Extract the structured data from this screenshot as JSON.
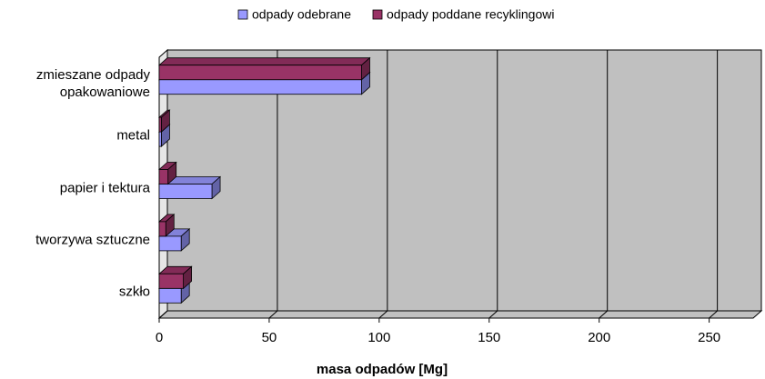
{
  "chart_data": {
    "type": "bar3d_horizontal",
    "categories": [
      "szkło",
      "tworzywa sztuczne",
      "papier i tektura",
      "metal",
      "zmieszane odpady opakowaniowe"
    ],
    "series": [
      {
        "name": "odpady odebrane",
        "color": "#9999ff",
        "values": [
          10,
          10,
          24,
          1,
          92
        ]
      },
      {
        "name": "odpady poddane recyklingowi",
        "color": "#993366",
        "values": [
          11,
          3,
          4,
          1,
          92
        ]
      }
    ],
    "xlabel": "masa odpadów  [Mg]",
    "xlim": [
      0,
      270
    ],
    "xticks": [
      0,
      50,
      100,
      150,
      200,
      250
    ],
    "grid": true,
    "legend": "top"
  }
}
